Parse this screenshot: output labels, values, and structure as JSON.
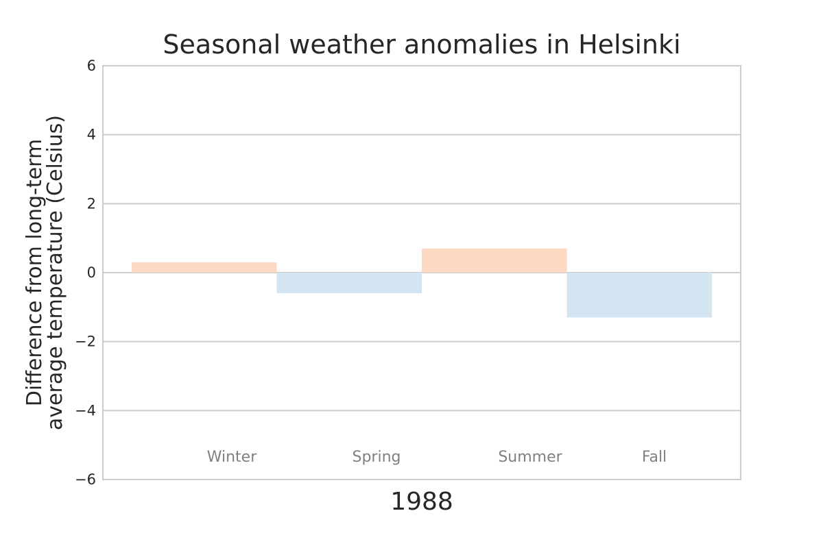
{
  "chart_data": {
    "type": "bar",
    "title": "Seasonal weather anomalies in Helsinki",
    "xlabel": "1988",
    "ylabel": [
      "Difference from long-term",
      "average temperature (Celsius)"
    ],
    "ylim": [
      -6,
      6
    ],
    "yticks": [
      -6,
      -4,
      -2,
      0,
      2,
      4,
      6
    ],
    "ytick_labels": [
      "−6",
      "−4",
      "−2",
      "0",
      "2",
      "4",
      "6"
    ],
    "grid": true,
    "categories": [
      "Winter",
      "Spring",
      "Summer",
      "Fall"
    ],
    "values": [
      0.3,
      -0.6,
      0.7,
      -1.3
    ],
    "colors": {
      "positive": "#fdd9c4",
      "negative": "#d2e5f0",
      "grid": "#cccccc",
      "frame": "#cccccc",
      "text": "#262626",
      "season_label": "#808080"
    }
  }
}
